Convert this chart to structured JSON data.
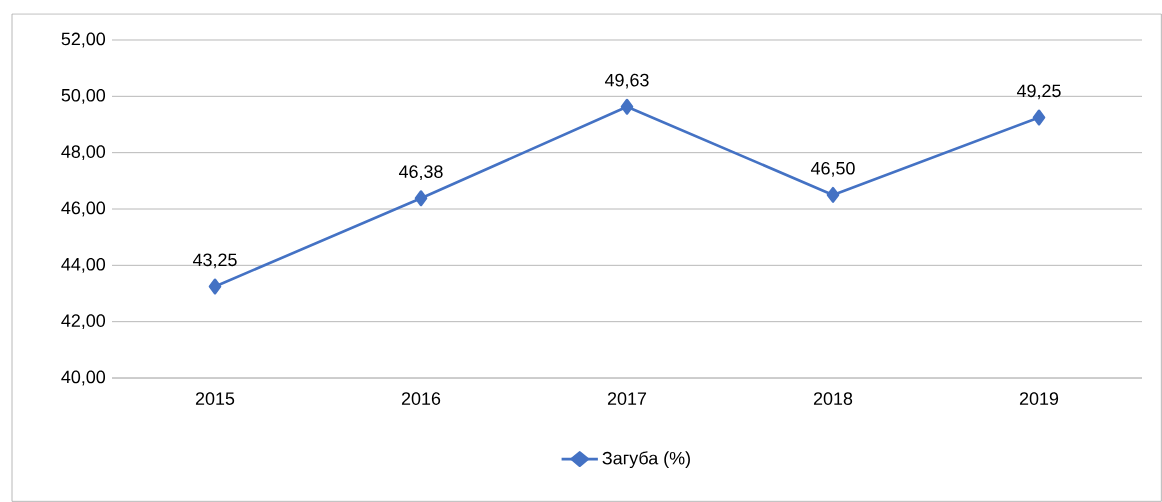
{
  "chart_data": {
    "type": "line",
    "categories": [
      "2015",
      "2016",
      "2017",
      "2018",
      "2019"
    ],
    "series": [
      {
        "name": "Загуба (%)",
        "color": "#4472c4",
        "values": [
          43.25,
          46.38,
          49.63,
          46.5,
          49.25
        ],
        "value_labels": [
          "43,25",
          "46,38",
          "49,63",
          "46,50",
          "49,25"
        ]
      }
    ],
    "ylim": [
      40,
      52
    ],
    "yticks": [
      {
        "value": 40,
        "label": "40,00"
      },
      {
        "value": 42,
        "label": "42,00"
      },
      {
        "value": 44,
        "label": "44,00"
      },
      {
        "value": 46,
        "label": "46,00"
      },
      {
        "value": 48,
        "label": "48,00"
      },
      {
        "value": 50,
        "label": "50,00"
      },
      {
        "value": 52,
        "label": "52,00"
      }
    ],
    "grid": "y",
    "legend": "bottom",
    "marker": "diamond",
    "line_style": "solid"
  }
}
